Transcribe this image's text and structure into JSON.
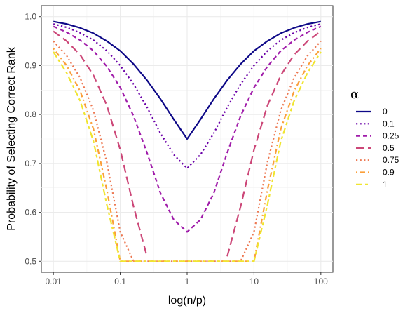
{
  "chart_data": {
    "type": "line",
    "xlabel": "log(n/p)",
    "ylabel": "Probability of Selecting Correct Rank",
    "x_scale": "log10",
    "xlim": [
      0.01,
      100
    ],
    "ylim": [
      0.5,
      1.0
    ],
    "x_ticks": [
      0.01,
      0.1,
      1,
      10,
      100
    ],
    "x_tick_labels": [
      "0.01",
      "0.1",
      "1",
      "10",
      "100"
    ],
    "y_ticks": [
      0.5,
      0.6,
      0.7,
      0.8,
      0.9,
      1.0
    ],
    "y_tick_labels": [
      "0.5",
      "0.6",
      "0.7",
      "0.8",
      "0.9",
      "1.0"
    ],
    "grid": true,
    "legend": {
      "title": "α",
      "position": "right"
    },
    "x": [
      0.01,
      0.0158,
      0.0251,
      0.0398,
      0.0631,
      0.1,
      0.158,
      0.251,
      0.398,
      0.631,
      1,
      1.585,
      2.512,
      3.981,
      6.31,
      10,
      15.85,
      25.12,
      39.81,
      63.1,
      100
    ],
    "series": [
      {
        "name": "0",
        "color": "#0d0887",
        "dash": "solid",
        "values": [
          0.99,
          0.985,
          0.977,
          0.966,
          0.95,
          0.93,
          0.903,
          0.87,
          0.832,
          0.79,
          0.75,
          0.79,
          0.832,
          0.87,
          0.903,
          0.93,
          0.95,
          0.966,
          0.977,
          0.985,
          0.99
        ]
      },
      {
        "name": "0.1",
        "color": "#6a00a8",
        "dash": "dotted",
        "values": [
          0.985,
          0.978,
          0.967,
          0.952,
          0.93,
          0.9,
          0.862,
          0.815,
          0.762,
          0.718,
          0.69,
          0.718,
          0.762,
          0.815,
          0.862,
          0.9,
          0.93,
          0.952,
          0.967,
          0.978,
          0.985
        ]
      },
      {
        "name": "0.25",
        "color": "#a01caa",
        "dash": "dashed",
        "values": [
          0.98,
          0.968,
          0.952,
          0.93,
          0.898,
          0.855,
          0.797,
          0.722,
          0.64,
          0.585,
          0.56,
          0.585,
          0.64,
          0.722,
          0.797,
          0.855,
          0.898,
          0.93,
          0.952,
          0.968,
          0.98
        ]
      },
      {
        "name": "0.5",
        "color": "#cc4778",
        "dash": "longdash",
        "values": [
          0.97,
          0.95,
          0.922,
          0.88,
          0.818,
          0.728,
          0.612,
          0.51,
          null,
          null,
          null,
          null,
          null,
          0.51,
          0.612,
          0.728,
          0.818,
          0.88,
          0.922,
          0.95,
          0.97
        ]
      },
      {
        "name": "0.75",
        "color": "#ed7953",
        "dash": "dotted",
        "values": [
          0.95,
          0.92,
          0.875,
          0.808,
          0.702,
          0.56,
          0.5,
          0.5,
          0.5,
          0.5,
          0.5,
          0.5,
          0.5,
          0.5,
          0.5,
          0.56,
          0.702,
          0.808,
          0.875,
          0.92,
          0.95
        ]
      },
      {
        "name": "0.9",
        "color": "#fb9f3a",
        "dash": "dotdash",
        "values": [
          0.935,
          0.9,
          0.848,
          0.77,
          0.645,
          0.5,
          0.5,
          0.5,
          0.5,
          0.5,
          0.5,
          0.5,
          0.5,
          0.5,
          0.5,
          0.5,
          0.645,
          0.77,
          0.848,
          0.9,
          0.935
        ]
      },
      {
        "name": "1",
        "color": "#f0e530",
        "dash": "twodash",
        "values": [
          0.928,
          0.885,
          0.828,
          0.745,
          0.615,
          0.5,
          0.5,
          0.5,
          0.5,
          0.5,
          0.5,
          0.5,
          0.5,
          0.5,
          0.5,
          0.5,
          0.615,
          0.745,
          0.828,
          0.885,
          0.928
        ]
      }
    ]
  }
}
